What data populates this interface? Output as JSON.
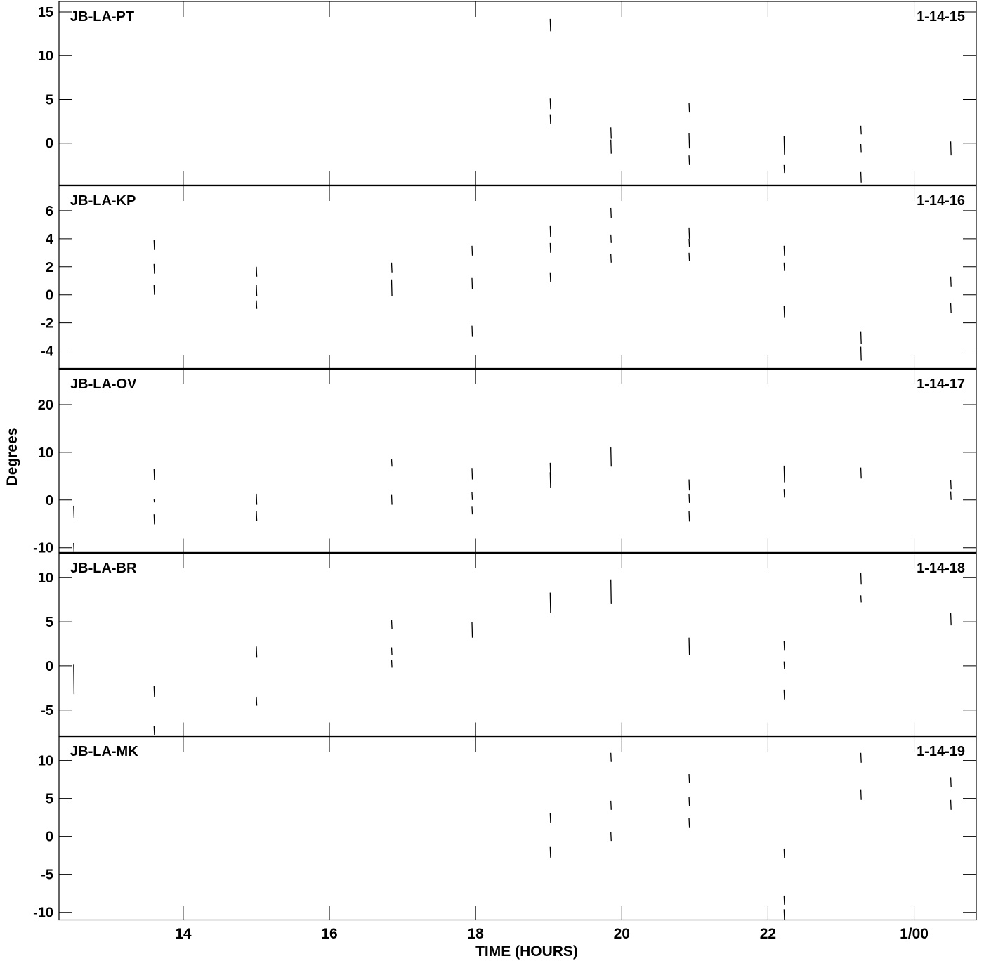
{
  "chart_data": {
    "type": "scatter",
    "xlabel": "TIME (HOURS)",
    "ylabel": "Degrees",
    "xlim": [
      12.3,
      24.85
    ],
    "x_ticks": [
      {
        "v": 14,
        "label": "14"
      },
      {
        "v": 16,
        "label": "16"
      },
      {
        "v": 18,
        "label": "18"
      },
      {
        "v": 20,
        "label": "20"
      },
      {
        "v": 22,
        "label": "22"
      },
      {
        "v": 24,
        "label": "1/00"
      }
    ],
    "panels": [
      {
        "baseline": "JB-LA-PT",
        "tag": "1-14-15",
        "ylim": [
          -4.8,
          16.2
        ],
        "y_ticks": [
          0,
          5,
          10,
          15
        ],
        "segments": [
          [
            19.02,
            12.8,
            14.2
          ],
          [
            19.02,
            3.9,
            5.1
          ],
          [
            19.02,
            2.2,
            3.3
          ],
          [
            19.85,
            -1.2,
            0.4
          ],
          [
            19.85,
            0.5,
            1.8
          ],
          [
            20.92,
            3.5,
            4.6
          ],
          [
            20.92,
            -0.6,
            1.1
          ],
          [
            20.92,
            -2.5,
            -1.4
          ],
          [
            22.22,
            -1.3,
            0.8
          ],
          [
            22.22,
            -3.4,
            -2.5
          ],
          [
            23.27,
            1.0,
            2.0
          ],
          [
            23.27,
            -1.1,
            -0.1
          ],
          [
            23.27,
            -4.5,
            -3.3
          ],
          [
            24.5,
            -1.4,
            0.2
          ]
        ]
      },
      {
        "baseline": "JB-LA-KP",
        "tag": "1-14-16",
        "ylim": [
          -5.3,
          7.8
        ],
        "y_ticks": [
          -4,
          -2,
          0,
          2,
          4,
          6
        ],
        "segments": [
          [
            13.6,
            3.2,
            3.9
          ],
          [
            13.6,
            1.5,
            2.2
          ],
          [
            13.6,
            0.0,
            0.7
          ],
          [
            15.0,
            1.3,
            2.0
          ],
          [
            15.0,
            -0.1,
            0.7
          ],
          [
            15.0,
            -1.0,
            -0.4
          ],
          [
            16.85,
            1.6,
            2.3
          ],
          [
            16.85,
            -0.1,
            1.1
          ],
          [
            17.95,
            2.8,
            3.5
          ],
          [
            17.95,
            0.4,
            1.2
          ],
          [
            17.95,
            -3.0,
            -2.2
          ],
          [
            19.02,
            4.1,
            4.9
          ],
          [
            19.02,
            3.0,
            3.7
          ],
          [
            19.02,
            0.9,
            1.6
          ],
          [
            19.85,
            5.5,
            6.2
          ],
          [
            19.85,
            3.7,
            4.3
          ],
          [
            19.85,
            2.3,
            2.9
          ],
          [
            20.92,
            4.0,
            4.8
          ],
          [
            20.92,
            3.4,
            4.0
          ],
          [
            20.92,
            2.4,
            3.0
          ],
          [
            22.22,
            2.8,
            3.5
          ],
          [
            22.22,
            1.7,
            2.3
          ],
          [
            22.22,
            -1.6,
            -0.8
          ],
          [
            23.27,
            -3.5,
            -2.6
          ],
          [
            23.27,
            -4.7,
            -3.7
          ],
          [
            24.5,
            0.6,
            1.3
          ],
          [
            24.5,
            -1.3,
            -0.6
          ]
        ]
      },
      {
        "baseline": "JB-LA-OV",
        "tag": "1-14-17",
        "ylim": [
          -11.0,
          27.5
        ],
        "y_ticks": [
          -10,
          0,
          10,
          20
        ],
        "segments": [
          [
            12.5,
            -3.7,
            -1.2
          ],
          [
            12.5,
            -11.0,
            -9.0
          ],
          [
            13.6,
            4.2,
            6.5
          ],
          [
            13.6,
            -0.5,
            0.1
          ],
          [
            13.6,
            -5.1,
            -3.0
          ],
          [
            15.0,
            -1.0,
            1.3
          ],
          [
            15.0,
            -4.3,
            -2.3
          ],
          [
            16.85,
            7.0,
            8.5
          ],
          [
            16.85,
            -1.0,
            1.2
          ],
          [
            17.95,
            4.3,
            6.7
          ],
          [
            17.95,
            0.0,
            1.6
          ],
          [
            17.95,
            -3.0,
            -1.4
          ],
          [
            19.02,
            5.0,
            7.8
          ],
          [
            19.02,
            2.5,
            5.8
          ],
          [
            19.85,
            7.0,
            11.0
          ],
          [
            20.92,
            2.0,
            4.3
          ],
          [
            20.92,
            -0.6,
            1.3
          ],
          [
            20.92,
            -4.5,
            -2.3
          ],
          [
            22.22,
            3.7,
            7.2
          ],
          [
            22.22,
            0.5,
            2.3
          ],
          [
            23.27,
            4.5,
            6.8
          ],
          [
            24.5,
            2.3,
            4.2
          ],
          [
            24.5,
            0.0,
            1.8
          ]
        ]
      },
      {
        "baseline": "JB-LA-BR",
        "tag": "1-14-18",
        "ylim": [
          -8.0,
          12.8
        ],
        "y_ticks": [
          -5,
          0,
          5,
          10
        ],
        "segments": [
          [
            12.5,
            -3.2,
            0.2
          ],
          [
            13.6,
            -3.5,
            -2.3
          ],
          [
            13.6,
            -7.8,
            -6.8
          ],
          [
            15.0,
            1.0,
            2.2
          ],
          [
            15.0,
            -4.5,
            -3.5
          ],
          [
            16.85,
            4.2,
            5.2
          ],
          [
            16.85,
            1.2,
            2.1
          ],
          [
            16.85,
            -0.2,
            0.7
          ],
          [
            17.95,
            3.2,
            5.0
          ],
          [
            19.02,
            6.0,
            8.3
          ],
          [
            19.85,
            7.0,
            9.8
          ],
          [
            20.92,
            1.2,
            3.2
          ],
          [
            22.22,
            1.8,
            2.8
          ],
          [
            22.22,
            -0.4,
            0.5
          ],
          [
            22.22,
            -3.8,
            -2.7
          ],
          [
            23.27,
            9.2,
            10.5
          ],
          [
            23.27,
            7.2,
            8.0
          ],
          [
            24.5,
            4.6,
            6.0
          ]
        ]
      },
      {
        "baseline": "JB-LA-MK",
        "tag": "1-14-19",
        "ylim": [
          -11.0,
          13.2
        ],
        "y_ticks": [
          -10,
          -5,
          0,
          5,
          10
        ],
        "segments": [
          [
            19.02,
            1.8,
            3.1
          ],
          [
            19.02,
            -2.8,
            -1.4
          ],
          [
            19.85,
            9.8,
            11.0
          ],
          [
            19.85,
            3.5,
            4.7
          ],
          [
            19.85,
            -0.6,
            0.6
          ],
          [
            20.92,
            7.0,
            8.2
          ],
          [
            20.92,
            4.0,
            5.2
          ],
          [
            20.92,
            1.2,
            2.4
          ],
          [
            22.22,
            -2.9,
            -1.6
          ],
          [
            22.22,
            -9.0,
            -7.8
          ],
          [
            22.22,
            -11.0,
            -9.6
          ],
          [
            23.27,
            9.7,
            11.0
          ],
          [
            23.27,
            4.8,
            6.2
          ],
          [
            24.5,
            6.5,
            7.8
          ],
          [
            24.5,
            3.5,
            4.8
          ]
        ]
      }
    ]
  }
}
